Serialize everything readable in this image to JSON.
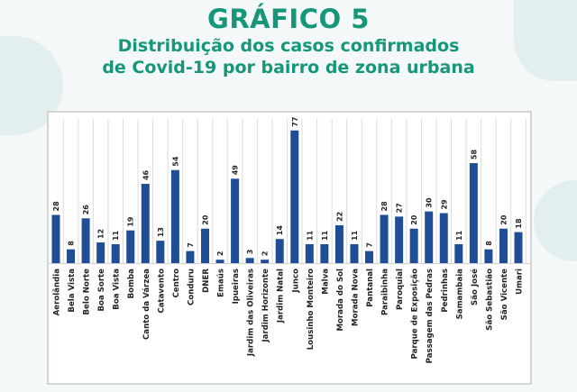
{
  "header": {
    "title": "GRÁFICO 5",
    "subtitle_line1": "Distribuição dos casos confirmados",
    "subtitle_line2": "de Covid-19 por bairro de zona urbana"
  },
  "colors": {
    "title": "#16977a",
    "bar": "#1f4e96"
  },
  "chart_data": {
    "type": "bar",
    "title": "GRÁFICO 5 - Distribuição dos casos confirmados de Covid-19 por bairro de zona urbana",
    "xlabel": "",
    "ylabel": "",
    "ylim": [
      0,
      80
    ],
    "grid": "vertical",
    "categories": [
      "Aerolândia",
      "Bela Vista",
      "Belo Norte",
      "Boa Sorte",
      "Boa Vista",
      "Bomba",
      "Canto da Várzea",
      "Catavento",
      "Centro",
      "Conduru",
      "DNER",
      "Emaús",
      "Ipueiras",
      "Jardim das Oliveiras",
      "Jardim Horizonte",
      "Jardim Natal",
      "Junco",
      "Lousinho Monteiro",
      "Malva",
      "Morada do Sol",
      "Morada Nova",
      "Pantanal",
      "Paraibinha",
      "Paroquial",
      "Parque de Exposição",
      "Passagem das Pedras",
      "Pedrinhas",
      "Samambaia",
      "São José",
      "São Sebastião",
      "São Vicente",
      "Umari"
    ],
    "values": [
      28,
      8,
      26,
      12,
      11,
      19,
      46,
      13,
      54,
      7,
      20,
      2,
      49,
      3,
      2,
      14,
      77,
      11,
      11,
      22,
      11,
      7,
      28,
      27,
      20,
      30,
      29,
      11,
      58,
      8,
      20,
      18
    ]
  }
}
